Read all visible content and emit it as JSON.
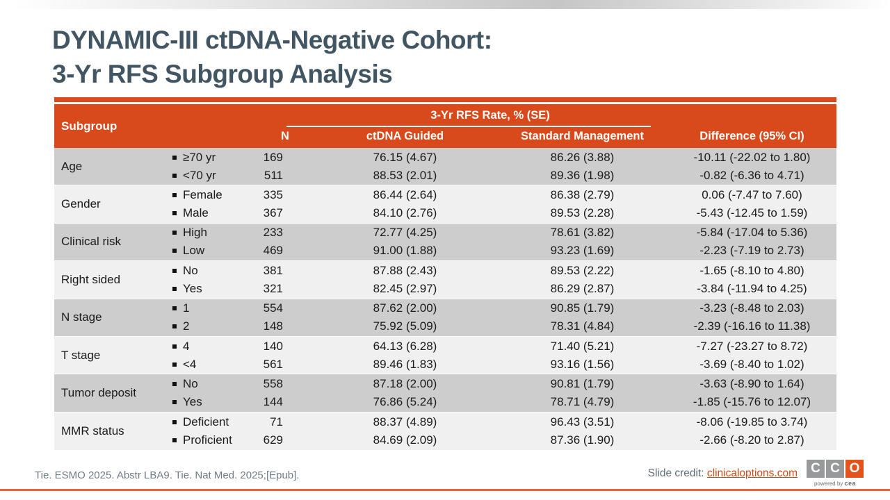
{
  "slide": {
    "title_line1": "DYNAMIC-III ctDNA-Negative Cohort:",
    "title_line2": "3-Yr RFS Subgroup Analysis",
    "footer_reference": "Tie. ESMO 2025. Abstr LBA9. Tie. Nat Med. 2025;[Epub].",
    "slide_credit_label": "Slide credit: ",
    "slide_credit_link": "clinicaloptions.com",
    "logo": {
      "letters": [
        "C",
        "C",
        "O"
      ],
      "tagline_prefix": "powered by ",
      "tagline_brand": "cea"
    },
    "colors": {
      "header_orange": "#D8491C",
      "accent_bar_orange": "#DA4A1C",
      "bottom_line_orange": "#E4643C",
      "logo_orange": "#E2541B",
      "logo_gray": "#97999B",
      "title_slate": "#425563",
      "row_gray": "#CDCDCD",
      "row_light": "#F0F0F0",
      "link_orange": "#CE4A17"
    }
  },
  "table": {
    "headers": {
      "subgroup": "Subgroup",
      "n": "N",
      "span": "3-Yr RFS Rate, % (SE)",
      "ctdna": "ctDNA Guided",
      "standard": "Standard Management",
      "difference": "Difference (95% CI)"
    },
    "rows": [
      {
        "subgroup": "Age",
        "items": [
          {
            "label": "≥70 yr",
            "n": "169",
            "ctdna": "76.15 (4.67)",
            "standard": "86.26 (3.88)",
            "difference": "-10.11 (-22.02 to 1.80)"
          },
          {
            "label": "<70 yr",
            "n": "511",
            "ctdna": "88.53 (2.01)",
            "standard": "89.36 (1.98)",
            "difference": "-0.82 (-6.36 to 4.71)"
          }
        ]
      },
      {
        "subgroup": "Gender",
        "items": [
          {
            "label": "Female",
            "n": "335",
            "ctdna": "86.44 (2.64)",
            "standard": "86.38 (2.79)",
            "difference": "0.06 (-7.47 to 7.60)"
          },
          {
            "label": "Male",
            "n": "367",
            "ctdna": "84.10 (2.76)",
            "standard": "89.53 (2.28)",
            "difference": "-5.43 (-12.45 to 1.59)"
          }
        ]
      },
      {
        "subgroup": "Clinical risk",
        "items": [
          {
            "label": "High",
            "n": "233",
            "ctdna": "72.77 (4.25)",
            "standard": "78.61 (3.82)",
            "difference": "-5.84 (-17.04 to 5.36)"
          },
          {
            "label": "Low",
            "n": "469",
            "ctdna": "91.00 (1.88)",
            "standard": "93.23 (1.69)",
            "difference": "-2.23 (-7.19 to 2.73)"
          }
        ]
      },
      {
        "subgroup": "Right sided",
        "items": [
          {
            "label": "No",
            "n": "381",
            "ctdna": "87.88 (2.43)",
            "standard": "89.53 (2.22)",
            "difference": "-1.65 (-8.10 to 4.80)"
          },
          {
            "label": "Yes",
            "n": "321",
            "ctdna": "82.45 (2.97)",
            "standard": "86.29 (2.87)",
            "difference": "-3.84 (-11.94 to 4.25)"
          }
        ]
      },
      {
        "subgroup": "N stage",
        "items": [
          {
            "label": "1",
            "n": "554",
            "ctdna": "87.62 (2.00)",
            "standard": "90.85 (1.79)",
            "difference": "-3.23 (-8.48 to 2.03)"
          },
          {
            "label": "2",
            "n": "148",
            "ctdna": "75.92 (5.09)",
            "standard": "78.31 (4.84)",
            "difference": "-2.39 (-16.16 to 11.38)"
          }
        ]
      },
      {
        "subgroup": "T stage",
        "items": [
          {
            "label": "4",
            "n": "140",
            "ctdna": "64.13 (6.28)",
            "standard": "71.40 (5.21)",
            "difference": "-7.27 (-23.27 to 8.72)"
          },
          {
            "label": "<4",
            "n": "561",
            "ctdna": "89.46 (1.83)",
            "standard": "93.16 (1.56)",
            "difference": "-3.69 (-8.40 to 1.02)"
          }
        ]
      },
      {
        "subgroup": "Tumor deposit",
        "items": [
          {
            "label": "No",
            "n": "558",
            "ctdna": "87.18 (2.00)",
            "standard": "90.81 (1.79)",
            "difference": "-3.63 (-8.90 to 1.64)"
          },
          {
            "label": "Yes",
            "n": "144",
            "ctdna": "76.86 (5.24)",
            "standard": "78.71 (4.79)",
            "difference": "-1.85 (-15.76 to 12.07)"
          }
        ]
      },
      {
        "subgroup": "MMR status",
        "items": [
          {
            "label": "Deficient",
            "n": "71",
            "ctdna": "88.37 (4.89)",
            "standard": "96.43 (3.51)",
            "difference": "-8.06 (-19.85 to 3.74)"
          },
          {
            "label": "Proficient",
            "n": "629",
            "ctdna": "84.69 (2.09)",
            "standard": "87.36 (1.90)",
            "difference": "-2.66 (-8.20 to 2.87)"
          }
        ]
      }
    ]
  }
}
